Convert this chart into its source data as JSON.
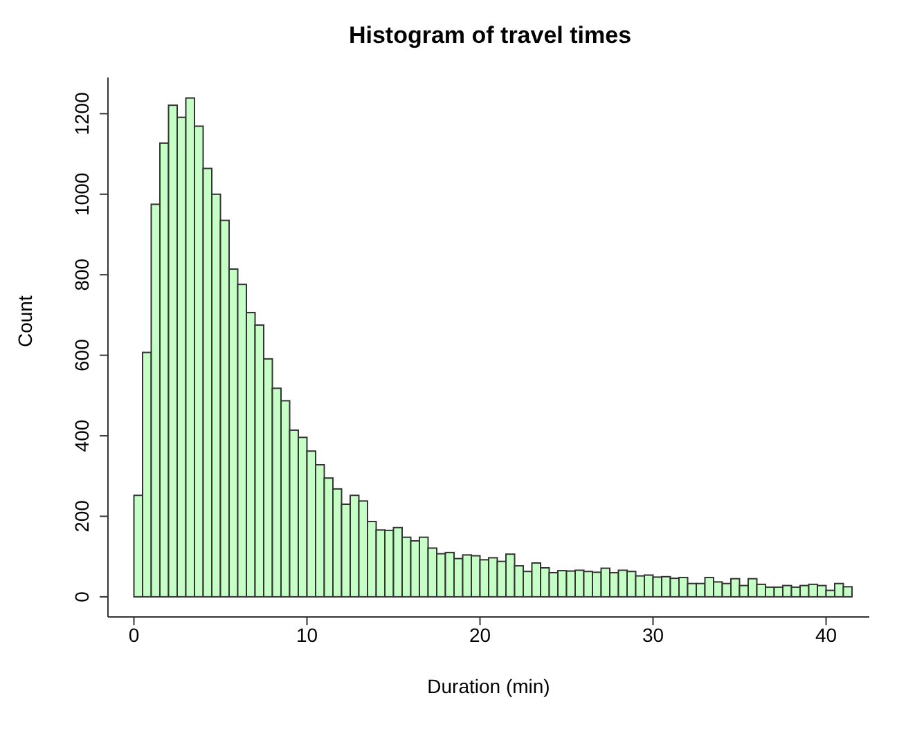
{
  "chart_data": {
    "type": "histogram",
    "title": "Histogram of travel times",
    "xlabel": "Duration (min)",
    "ylabel": "Count",
    "bins": [
      0,
      0.5,
      1,
      1.5,
      2,
      2.5,
      3,
      3.5,
      4,
      4.5,
      5,
      5.5,
      6,
      6.5,
      7,
      7.5,
      8,
      8.5,
      9,
      9.5,
      10,
      10.5,
      11,
      11.5,
      12,
      12.5,
      13,
      13.5,
      14,
      14.5,
      15,
      15.5,
      16,
      16.5,
      17,
      17.5,
      18,
      18.5,
      19,
      19.5,
      20,
      20.5,
      21,
      21.5,
      22,
      22.5,
      23,
      23.5,
      24,
      24.5,
      25,
      25.5,
      26,
      26.5,
      27,
      27.5,
      28,
      28.5,
      29,
      29.5,
      30,
      30.5,
      31,
      31.5,
      32,
      32.5,
      33,
      33.5,
      34,
      34.5,
      35,
      35.5,
      36,
      36.5,
      37,
      37.5,
      38,
      38.5,
      39,
      39.5,
      40,
      40.5,
      41,
      41.5
    ],
    "values": [
      252,
      607,
      975,
      1127,
      1221,
      1191,
      1239,
      1169,
      1064,
      1000,
      935,
      814,
      776,
      706,
      675,
      591,
      518,
      487,
      414,
      396,
      362,
      328,
      295,
      268,
      230,
      252,
      238,
      187,
      166,
      165,
      172,
      148,
      139,
      148,
      121,
      107,
      110,
      95,
      104,
      102,
      92,
      97,
      88,
      106,
      77,
      63,
      84,
      72,
      60,
      65,
      64,
      66,
      63,
      61,
      71,
      60,
      66,
      63,
      52,
      54,
      49,
      50,
      46,
      48,
      33,
      33,
      48,
      37,
      33,
      45,
      28,
      45,
      31,
      24,
      24,
      28,
      24,
      28,
      31,
      28,
      16,
      33,
      25
    ],
    "color": "#c6ffc6",
    "xlim": [
      -1.5,
      42.5
    ],
    "xticks": [
      0,
      10,
      20,
      30,
      40
    ],
    "ylim": [
      -50,
      1290
    ],
    "yticks": [
      0,
      200,
      400,
      600,
      800,
      1000,
      1200
    ],
    "grid": false,
    "legend": false
  }
}
